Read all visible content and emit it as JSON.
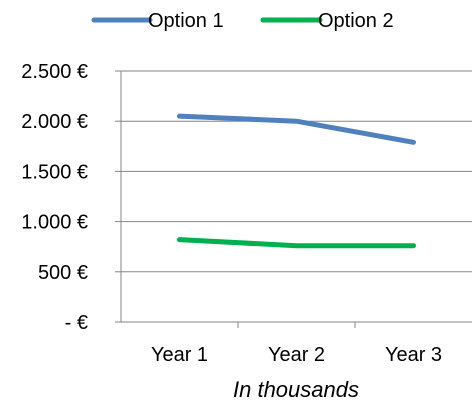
{
  "chart_data": {
    "type": "line",
    "categories": [
      "Year 1",
      "Year 2",
      "Year 3"
    ],
    "series": [
      {
        "name": "Option 1",
        "values": [
          2050,
          2000,
          1790
        ],
        "color": "#4F81BD"
      },
      {
        "name": "Option 2",
        "values": [
          820,
          760,
          760
        ],
        "color": "#00B050"
      }
    ],
    "yticks": [
      {
        "value": 0,
        "label": "-   €"
      },
      {
        "value": 500,
        "label": "500 €"
      },
      {
        "value": 1000,
        "label": "1.000 €"
      },
      {
        "value": 1500,
        "label": "1.500 €"
      },
      {
        "value": 2000,
        "label": "2.000 €"
      },
      {
        "value": 2500,
        "label": "2.500 €"
      }
    ],
    "ylim": [
      0,
      2500
    ],
    "xlabel": "In thousands",
    "ylabel": "",
    "title": "",
    "legend_position": "top",
    "grid": true
  }
}
